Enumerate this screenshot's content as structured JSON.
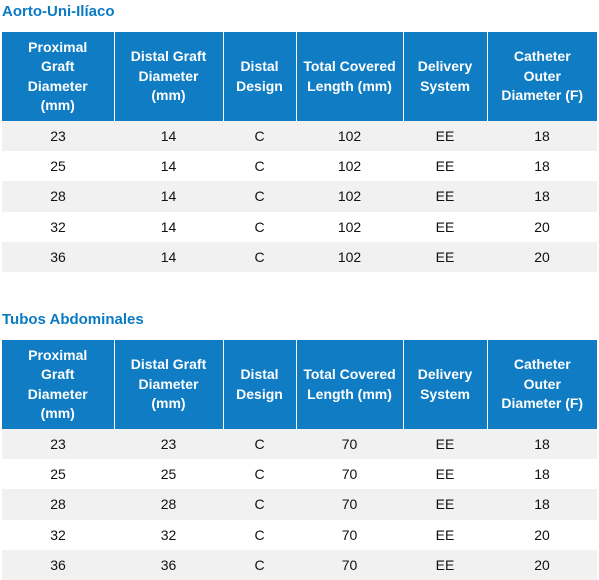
{
  "sections": [
    {
      "title": "Aorto-Uni-Ilíaco",
      "table": {
        "headers": [
          "Proximal Graft Diameter (mm)",
          "Distal Graft Diameter (mm)",
          "Distal Design",
          "Total Covered Length (mm)",
          "Delivery System",
          "Catheter Outer Diameter (F)"
        ],
        "rows": [
          [
            23,
            14,
            "C",
            102,
            "EE",
            18
          ],
          [
            25,
            14,
            "C",
            102,
            "EE",
            18
          ],
          [
            28,
            14,
            "C",
            102,
            "EE",
            18
          ],
          [
            32,
            14,
            "C",
            102,
            "EE",
            20
          ],
          [
            36,
            14,
            "C",
            102,
            "EE",
            20
          ]
        ]
      }
    },
    {
      "title": "Tubos Abdominales",
      "table": {
        "headers": [
          "Proximal Graft Diameter (mm)",
          "Distal Graft Diameter (mm)",
          "Distal Design",
          "Total Covered Length (mm)",
          "Delivery System",
          "Catheter Outer Diameter (F)"
        ],
        "rows": [
          [
            23,
            23,
            "C",
            70,
            "EE",
            18
          ],
          [
            25,
            25,
            "C",
            70,
            "EE",
            18
          ],
          [
            28,
            28,
            "C",
            70,
            "EE",
            18
          ],
          [
            32,
            32,
            "C",
            70,
            "EE",
            20
          ],
          [
            36,
            36,
            "C",
            70,
            "EE",
            20
          ]
        ]
      }
    }
  ]
}
